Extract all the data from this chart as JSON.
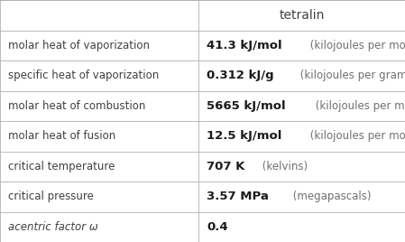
{
  "title": "tetralin",
  "rows": [
    {
      "property": "molar heat of vaporization",
      "value_bold": "41.3 kJ/mol",
      "value_light": " (kilojoules per mole)"
    },
    {
      "property": "specific heat of vaporization",
      "value_bold": "0.312 kJ/g",
      "value_light": " (kilojoules per gram)"
    },
    {
      "property": "molar heat of combustion",
      "value_bold": "5665 kJ/mol",
      "value_light": " (kilojoules per mole)"
    },
    {
      "property": "molar heat of fusion",
      "value_bold": "12.5 kJ/mol",
      "value_light": " (kilojoules per mole)"
    },
    {
      "property": "critical temperature",
      "value_bold": "707 K",
      "value_light": " (kelvins)"
    },
    {
      "property": "critical pressure",
      "value_bold": "3.57 MPa",
      "value_light": " (megapascals)"
    },
    {
      "property": "acentric factor ω",
      "value_bold": "0.4",
      "value_light": ""
    }
  ],
  "col_split": 0.49,
  "bg_color": "#ffffff",
  "line_color": "#b0b0b0",
  "text_color": "#404040",
  "bold_color": "#1a1a1a",
  "light_color": "#707070",
  "property_fontsize": 8.5,
  "value_bold_fontsize": 9.5,
  "value_light_fontsize": 8.5,
  "title_fontsize": 10
}
